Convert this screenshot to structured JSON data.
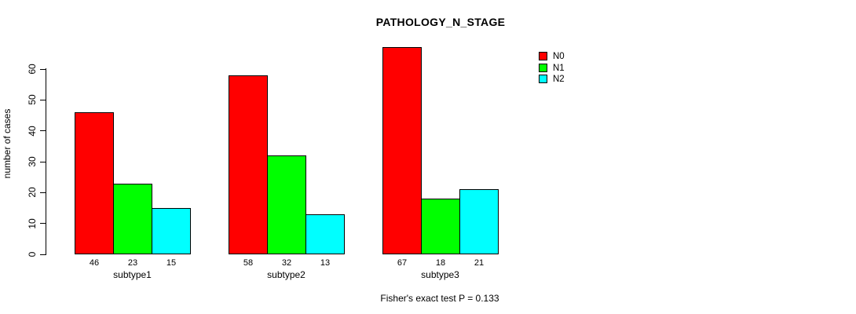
{
  "chart_data": {
    "type": "bar",
    "title": "PATHOLOGY_N_STAGE",
    "xlabel": "",
    "ylabel": "number of cases",
    "annotation": "Fisher's exact test P = 0.133",
    "categories": [
      "subtype1",
      "subtype2",
      "subtype3"
    ],
    "series": [
      {
        "name": "N0",
        "color": "#FF0000",
        "values": [
          46,
          58,
          67
        ]
      },
      {
        "name": "N1",
        "color": "#00FF00",
        "values": [
          23,
          32,
          18
        ]
      },
      {
        "name": "N2",
        "color": "#00FFFF",
        "values": [
          15,
          13,
          21
        ]
      }
    ],
    "yticks": [
      0,
      10,
      20,
      30,
      40,
      50,
      60
    ],
    "ylim": [
      0,
      67
    ],
    "grid": false,
    "legend_position": "right",
    "legend_items": [
      {
        "label": "N0",
        "color": "#FF0000"
      },
      {
        "label": "N1",
        "color": "#00FF00"
      },
      {
        "label": "N2",
        "color": "#00FFFF"
      }
    ]
  }
}
